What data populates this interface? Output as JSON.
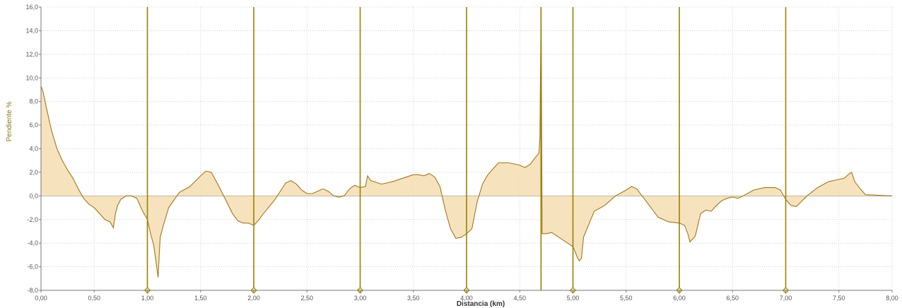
{
  "chart_data": {
    "type": "area",
    "xlabel": "Distancia (km)",
    "ylabel": "Pendiente %",
    "xlim": [
      0,
      8
    ],
    "ylim": [
      -8,
      16
    ],
    "x_ticks": [
      "0,00",
      "0,50",
      "1,00",
      "1,50",
      "2,00",
      "2,50",
      "3,00",
      "3,50",
      "4,00",
      "4,50",
      "5,00",
      "5,50",
      "6,00",
      "6,50",
      "7,00",
      "7,50",
      "8,00"
    ],
    "y_ticks": [
      "16,0",
      "14,0",
      "12,0",
      "10,0",
      "8,0",
      "6,0",
      "4,0",
      "2,0",
      "0,0",
      "-2,0",
      "-4,0",
      "-6,0",
      "-8,0"
    ],
    "km_markers": [
      1,
      2,
      3,
      4,
      5,
      6,
      7
    ],
    "marker_extra": [
      4.7
    ],
    "grid": true,
    "colors": {
      "fill": "#f5deb3",
      "line": "#a0771c",
      "marker": "#9a8000",
      "grid": "#c8c8c8"
    },
    "series": [
      {
        "x": [
          0.0,
          0.02,
          0.05,
          0.1,
          0.15,
          0.2,
          0.25,
          0.3,
          0.35,
          0.4,
          0.45,
          0.5,
          0.55,
          0.6,
          0.65,
          0.68,
          0.7,
          0.72,
          0.75,
          0.8,
          0.85,
          0.9,
          0.95,
          1.0,
          1.03,
          1.06,
          1.08,
          1.1,
          1.12,
          1.15,
          1.2,
          1.3,
          1.4,
          1.5,
          1.55,
          1.6,
          1.65,
          1.7,
          1.8,
          1.85,
          1.9,
          1.95,
          2.0,
          2.05,
          2.1,
          2.2,
          2.3,
          2.35,
          2.4,
          2.45,
          2.5,
          2.55,
          2.6,
          2.65,
          2.7,
          2.75,
          2.8,
          2.85,
          2.9,
          2.95,
          3.0,
          3.05,
          3.07,
          3.1,
          3.2,
          3.3,
          3.4,
          3.5,
          3.55,
          3.6,
          3.65,
          3.7,
          3.75,
          3.8,
          3.85,
          3.9,
          3.95,
          4.0,
          4.05,
          4.1,
          4.15,
          4.2,
          4.25,
          4.3,
          4.4,
          4.5,
          4.55,
          4.6,
          4.65,
          4.68,
          4.69,
          4.7,
          4.71,
          4.75,
          4.8,
          4.85,
          4.9,
          4.95,
          5.0,
          5.02,
          5.04,
          5.06,
          5.08,
          5.1,
          5.2,
          5.3,
          5.4,
          5.5,
          5.55,
          5.6,
          5.65,
          5.7,
          5.8,
          5.9,
          6.0,
          6.05,
          6.08,
          6.1,
          6.15,
          6.2,
          6.25,
          6.3,
          6.35,
          6.4,
          6.45,
          6.5,
          6.55,
          6.6,
          6.7,
          6.8,
          6.9,
          6.95,
          7.0,
          7.05,
          7.1,
          7.2,
          7.3,
          7.4,
          7.5,
          7.55,
          7.6,
          7.62,
          7.65,
          7.7,
          7.75,
          8.0
        ],
        "y": [
          9.3,
          8.8,
          7.5,
          5.5,
          4.0,
          3.0,
          2.2,
          1.5,
          0.6,
          -0.2,
          -0.7,
          -1.0,
          -1.5,
          -2.0,
          -2.2,
          -2.7,
          -1.5,
          -0.8,
          -0.3,
          0.0,
          0.0,
          -0.2,
          -1.2,
          -2.0,
          -3.2,
          -4.2,
          -5.5,
          -6.9,
          -3.5,
          -2.5,
          -1.0,
          0.3,
          0.8,
          1.7,
          2.1,
          2.0,
          1.2,
          0.3,
          -1.5,
          -2.1,
          -2.3,
          -2.3,
          -2.5,
          -2.0,
          -1.4,
          -0.3,
          1.1,
          1.3,
          1.0,
          0.5,
          0.2,
          0.2,
          0.4,
          0.6,
          0.4,
          0.0,
          -0.1,
          0.0,
          0.6,
          0.9,
          0.7,
          0.8,
          1.7,
          1.3,
          1.0,
          1.2,
          1.5,
          1.8,
          1.8,
          1.7,
          1.9,
          1.6,
          0.8,
          -1.2,
          -2.8,
          -3.6,
          -3.5,
          -3.2,
          -2.8,
          -0.5,
          1.0,
          1.8,
          2.3,
          2.8,
          2.8,
          2.6,
          2.4,
          2.7,
          3.3,
          3.6,
          5.0,
          17.0,
          -3.2,
          -3.2,
          -3.1,
          -3.4,
          -3.7,
          -4.0,
          -4.3,
          -4.7,
          -5.2,
          -5.5,
          -5.3,
          -3.5,
          -1.3,
          -0.8,
          0.0,
          0.5,
          0.8,
          0.6,
          0.0,
          -0.6,
          -1.8,
          -2.2,
          -2.3,
          -2.5,
          -3.2,
          -3.9,
          -3.4,
          -1.5,
          -1.2,
          -1.3,
          -0.8,
          -0.4,
          -0.2,
          -0.1,
          -0.2,
          0.0,
          0.5,
          0.7,
          0.7,
          0.5,
          -0.3,
          -0.8,
          -0.9,
          0.0,
          0.7,
          1.2,
          1.4,
          1.5,
          1.9,
          2.0,
          1.2,
          0.6,
          0.1,
          0.0
        ]
      }
    ]
  }
}
